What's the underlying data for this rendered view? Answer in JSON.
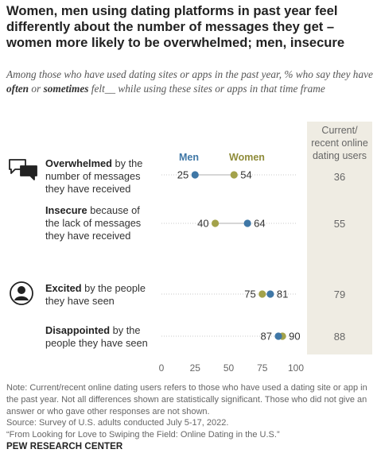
{
  "title": "Women, men using dating platforms in past year feel differently about the number of messages they get – women more likely to be overwhelmed; men, insecure",
  "subtitle": {
    "part1": "Among those who have used dating sites or apps in the past year, % who say they have ",
    "often": "often",
    "or": " or ",
    "sometimes": "sometimes",
    "part2": " felt__ while using these sites or apps in that time frame"
  },
  "column_header": "Current/ recent online dating users",
  "legend": {
    "men": "Men",
    "women": "Women"
  },
  "rows": [
    {
      "bold": "Overwhelmed",
      "rest": " by the number of messages they have received",
      "users": "36"
    },
    {
      "bold": "Insecure",
      "rest": " because of the lack of messages they have received",
      "users": "55"
    },
    {
      "bold": "Excited",
      "rest": " by the people they have seen",
      "users": "79"
    },
    {
      "bold": "Disappointed",
      "rest": " by the people they have seen",
      "users": "88"
    }
  ],
  "note": "Note: Current/recent online dating users refers to those who have used a dating site or app in the past year. Not all differences shown are statistically significant. Those who did not give an answer or who gave other responses are not shown.",
  "source": "Source: Survey of U.S. adults conducted July 5-17, 2022.",
  "report": "“From Looking for Love to Swiping the Field: Online Dating in the U.S.”",
  "brand": "PEW RESEARCH CENTER",
  "colors": {
    "men": "#3f77a6",
    "women": "#a3a24a",
    "panel": "#efece3"
  },
  "icons": [
    "chat-bubbles-icon",
    "person-icon"
  ],
  "chart_data": {
    "type": "scatter",
    "categories": [
      "Overwhelmed",
      "Insecure",
      "Excited",
      "Disappointed"
    ],
    "series": [
      {
        "name": "Men",
        "values": [
          25,
          64,
          81,
          87
        ]
      },
      {
        "name": "Women",
        "values": [
          54,
          40,
          75,
          90
        ]
      }
    ],
    "xticks": [
      0,
      25,
      50,
      75,
      100
    ],
    "xlim": [
      0,
      100
    ],
    "grid": false
  }
}
